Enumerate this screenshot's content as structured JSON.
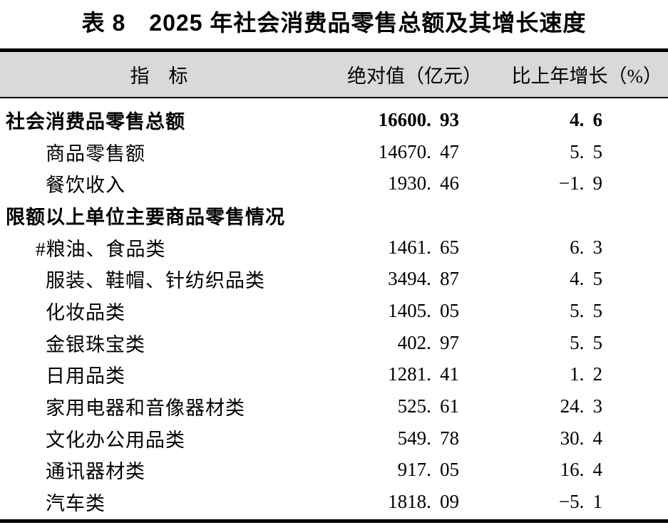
{
  "title": "表 8　2025 年社会消费品零售总额及其增长速度",
  "colors": {
    "header_background": "#d9d9d9",
    "rule": "#000000",
    "text": "#000000",
    "page_background": "#ffffff"
  },
  "table": {
    "headers": {
      "indicator": "指　标",
      "absolute": "绝对值（亿元）",
      "growth": "比上年增长（%）"
    },
    "rows": [
      {
        "label": "社会消费品零售总额",
        "absolute": "16600.93",
        "growth": "4.6"
      },
      {
        "label": "商品零售额",
        "absolute": "14670.47",
        "growth": "5.5"
      },
      {
        "label": "餐饮收入",
        "absolute": "1930.46",
        "growth": "-1.9"
      },
      {
        "label": "限额以上单位主要商品零售情况",
        "absolute": "",
        "growth": ""
      },
      {
        "label": "#粮油、食品类",
        "absolute": "1461.65",
        "growth": "6.3"
      },
      {
        "label": "服装、鞋帽、针纺织品类",
        "absolute": "3494.87",
        "growth": "4.5"
      },
      {
        "label": "化妆品类",
        "absolute": "1405.05",
        "growth": "5.5"
      },
      {
        "label": "金银珠宝类",
        "absolute": "402.97",
        "growth": "5.5"
      },
      {
        "label": "日用品类",
        "absolute": "1281.41",
        "growth": "1.2"
      },
      {
        "label": "家用电器和音像器材类",
        "absolute": "525.61",
        "growth": "24.3"
      },
      {
        "label": "文化办公用品类",
        "absolute": "549.78",
        "growth": "30.4"
      },
      {
        "label": "通讯器材类",
        "absolute": "917.05",
        "growth": "16.4"
      },
      {
        "label": "汽车类",
        "absolute": "1818.09",
        "growth": "-5.1"
      }
    ]
  },
  "chart_data": {
    "type": "table",
    "title": "表8 2025年社会消费品零售总额及其增长速度",
    "columns": [
      "指标",
      "绝对值（亿元）",
      "比上年增长（%）"
    ],
    "rows": [
      [
        "社会消费品零售总额",
        16600.93,
        4.6
      ],
      [
        "商品零售额",
        14670.47,
        5.5
      ],
      [
        "餐饮收入",
        1930.46,
        -1.9
      ],
      [
        "限额以上单位主要商品零售情况",
        null,
        null
      ],
      [
        "#粮油、食品类",
        1461.65,
        6.3
      ],
      [
        "服装、鞋帽、针纺织品类",
        3494.87,
        4.5
      ],
      [
        "化妆品类",
        1405.05,
        5.5
      ],
      [
        "金银珠宝类",
        402.97,
        5.5
      ],
      [
        "日用品类",
        1281.41,
        1.2
      ],
      [
        "家用电器和音像器材类",
        525.61,
        24.3
      ],
      [
        "文化办公用品类",
        549.78,
        30.4
      ],
      [
        "通讯器材类",
        917.05,
        16.4
      ],
      [
        "汽车类",
        1818.09,
        -5.1
      ]
    ]
  }
}
